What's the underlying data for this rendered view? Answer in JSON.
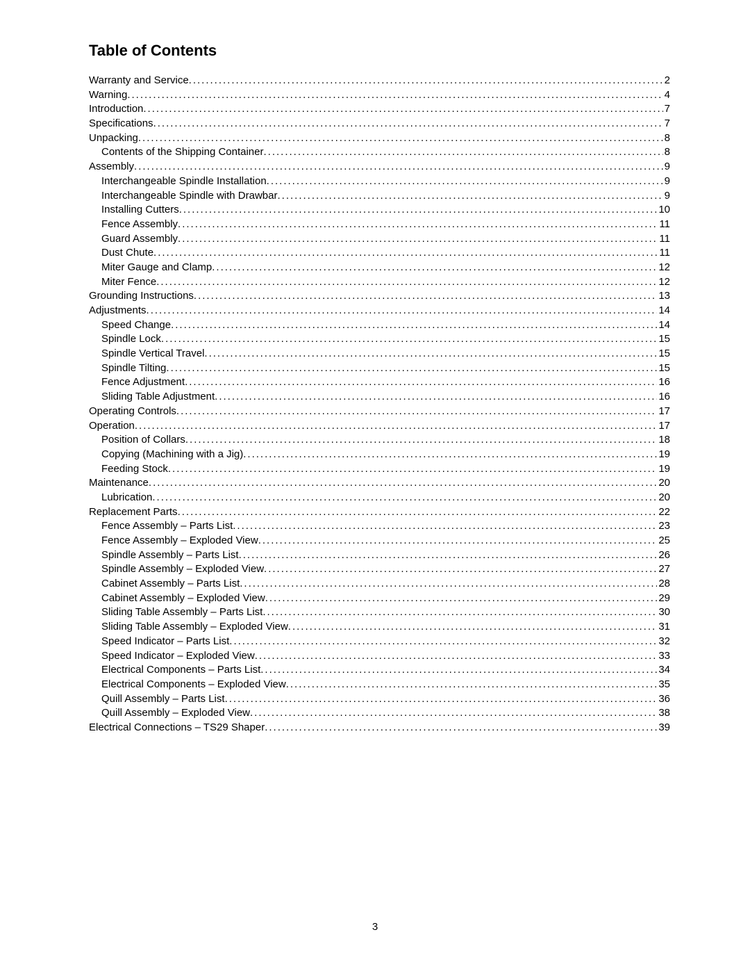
{
  "title": "Table of Contents",
  "page_number": "3",
  "fonts": {
    "title_size": 22,
    "entry_size": 15,
    "family": "Arial"
  },
  "colors": {
    "text": "#000000",
    "background": "#ffffff"
  },
  "entries": [
    {
      "label": "Warranty and Service",
      "page": "2",
      "level": 0
    },
    {
      "label": "Warning",
      "page": "4",
      "level": 0
    },
    {
      "label": "Introduction",
      "page": "7",
      "level": 0
    },
    {
      "label": "Specifications",
      "page": "7",
      "level": 0
    },
    {
      "label": "Unpacking",
      "page": "8",
      "level": 0
    },
    {
      "label": "Contents of the Shipping Container",
      "page": "8",
      "level": 1
    },
    {
      "label": "Assembly",
      "page": "9",
      "level": 0
    },
    {
      "label": "Interchangeable Spindle Installation",
      "page": "9",
      "level": 1
    },
    {
      "label": "Interchangeable Spindle with Drawbar",
      "page": "9",
      "level": 1
    },
    {
      "label": "Installing Cutters",
      "page": "10",
      "level": 1
    },
    {
      "label": "Fence Assembly",
      "page": "11",
      "level": 1
    },
    {
      "label": "Guard Assembly",
      "page": "11",
      "level": 1
    },
    {
      "label": "Dust Chute",
      "page": "11",
      "level": 1
    },
    {
      "label": "Miter Gauge and Clamp",
      "page": "12",
      "level": 1
    },
    {
      "label": "Miter Fence",
      "page": "12",
      "level": 1
    },
    {
      "label": "Grounding Instructions",
      "page": "13",
      "level": 0
    },
    {
      "label": "Adjustments",
      "page": "14",
      "level": 0
    },
    {
      "label": "Speed Change",
      "page": "14",
      "level": 1
    },
    {
      "label": "Spindle Lock",
      "page": "15",
      "level": 1
    },
    {
      "label": "Spindle Vertical Travel",
      "page": "15",
      "level": 1
    },
    {
      "label": "Spindle Tilting",
      "page": "15",
      "level": 1
    },
    {
      "label": "Fence Adjustment",
      "page": "16",
      "level": 1
    },
    {
      "label": "Sliding Table Adjustment",
      "page": "16",
      "level": 1
    },
    {
      "label": "Operating Controls",
      "page": "17",
      "level": 0
    },
    {
      "label": "Operation",
      "page": "17",
      "level": 0
    },
    {
      "label": "Position of Collars",
      "page": "18",
      "level": 1
    },
    {
      "label": "Copying (Machining with a Jig)",
      "page": "19",
      "level": 1
    },
    {
      "label": "Feeding Stock",
      "page": "19",
      "level": 1
    },
    {
      "label": "Maintenance",
      "page": "20",
      "level": 0
    },
    {
      "label": "Lubrication",
      "page": "20",
      "level": 1
    },
    {
      "label": "Replacement Parts",
      "page": "22",
      "level": 0
    },
    {
      "label": "Fence Assembly – Parts List",
      "page": "23",
      "level": 1
    },
    {
      "label": "Fence Assembly – Exploded View",
      "page": "25",
      "level": 1
    },
    {
      "label": "Spindle Assembly – Parts List",
      "page": "26",
      "level": 1
    },
    {
      "label": "Spindle Assembly – Exploded View",
      "page": "27",
      "level": 1
    },
    {
      "label": "Cabinet Assembly – Parts List",
      "page": "28",
      "level": 1
    },
    {
      "label": "Cabinet Assembly – Exploded View",
      "page": "29",
      "level": 1
    },
    {
      "label": "Sliding Table Assembly – Parts List",
      "page": "30",
      "level": 1
    },
    {
      "label": "Sliding Table Assembly – Exploded View",
      "page": "31",
      "level": 1
    },
    {
      "label": "Speed Indicator – Parts List",
      "page": "32",
      "level": 1
    },
    {
      "label": "Speed Indicator – Exploded View",
      "page": "33",
      "level": 1
    },
    {
      "label": "Electrical Components – Parts List",
      "page": "34",
      "level": 1
    },
    {
      "label": "Electrical Components – Exploded View",
      "page": "35",
      "level": 1
    },
    {
      "label": "Quill Assembly – Parts List",
      "page": "36",
      "level": 1
    },
    {
      "label": "Quill Assembly – Exploded View",
      "page": "38",
      "level": 1
    },
    {
      "label": "Electrical Connections – TS29 Shaper",
      "page": "39",
      "level": 0
    }
  ]
}
